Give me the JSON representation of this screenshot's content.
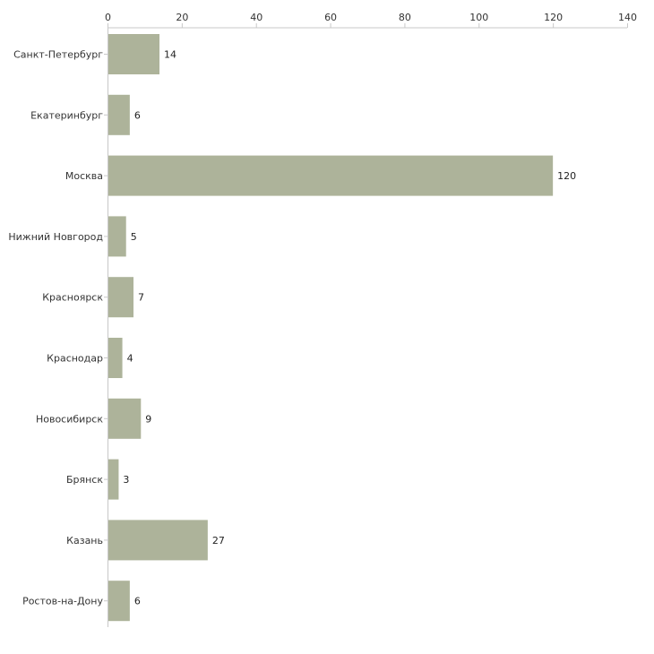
{
  "chart_data": {
    "type": "bar",
    "orientation": "horizontal",
    "title": "",
    "xlabel": "",
    "ylabel": "",
    "xlim": [
      0,
      140
    ],
    "x_ticks": [
      0,
      20,
      40,
      60,
      80,
      100,
      120,
      140
    ],
    "grid": false,
    "axis_position": "top",
    "categories": [
      "Санкт-Петербург",
      "Екатеринбург",
      "Москва",
      "Нижний Новгород",
      "Красноярск",
      "Краснодар",
      "Новосибирск",
      "Брянск",
      "Казань",
      "Ростов-на-Дону"
    ],
    "values": [
      14,
      6,
      120,
      5,
      7,
      4,
      9,
      3,
      27,
      6
    ],
    "colors": {
      "bar": "#adb39a",
      "axis": "#c8c8c8",
      "text": "#333333"
    }
  }
}
